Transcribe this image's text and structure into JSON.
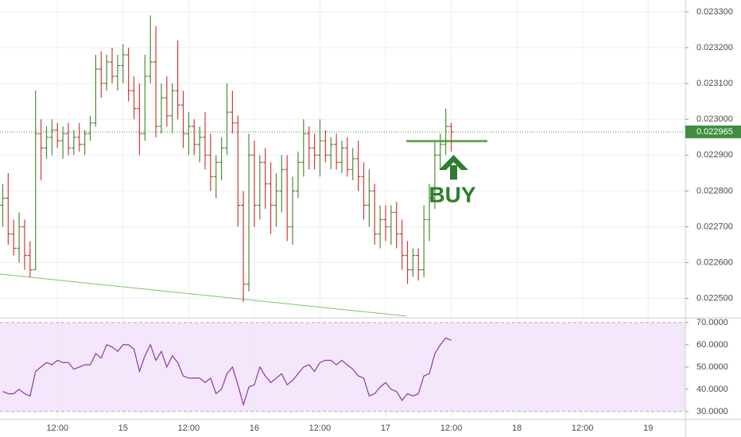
{
  "chart_data": {
    "type": "ohlc",
    "up_color": "#4e8b34",
    "down_color": "#d0393a",
    "grid": true,
    "xlim": [
      1.5,
      126.8
    ],
    "xticks": [
      {
        "value": 12,
        "label": "12:00"
      },
      {
        "value": 24,
        "label": "15"
      },
      {
        "value": 36,
        "label": "12:00"
      },
      {
        "value": 48,
        "label": "16"
      },
      {
        "value": 60,
        "label": "12:00"
      },
      {
        "value": 72,
        "label": "17"
      },
      {
        "value": 84,
        "label": "12:00"
      },
      {
        "value": 96,
        "label": "18"
      },
      {
        "value": 108,
        "label": "12:00"
      },
      {
        "value": 120,
        "label": "19"
      }
    ],
    "ylim": [
      0.022446,
      0.023333
    ],
    "yticks": [
      {
        "value": 0.0233,
        "label": "0.023300"
      },
      {
        "value": 0.0232,
        "label": "0.023200"
      },
      {
        "value": 0.0231,
        "label": "0.023100"
      },
      {
        "value": 0.023,
        "label": "0.023000"
      },
      {
        "value": 0.0229,
        "label": "0.022900"
      },
      {
        "value": 0.0228,
        "label": "0.022800"
      },
      {
        "value": 0.0227,
        "label": "0.022700"
      },
      {
        "value": 0.0226,
        "label": "0.022600"
      },
      {
        "value": 0.0225,
        "label": "0.022500"
      }
    ],
    "y2lim": [
      26.4,
      72.1
    ],
    "y2ticks": [
      {
        "value": 70,
        "label": "70.0000"
      },
      {
        "value": 60,
        "label": "60.0000"
      },
      {
        "value": 50,
        "label": "50.0000"
      },
      {
        "value": 40,
        "label": "40.0000"
      },
      {
        "value": 30,
        "label": "30.0000"
      }
    ],
    "current_price": 0.022965,
    "current_color": "#3f8f3f",
    "x": [
      2,
      3,
      4,
      5,
      6,
      7,
      8,
      9,
      10,
      11,
      12,
      13,
      14,
      15,
      16,
      17,
      18,
      19,
      20,
      21,
      22,
      23,
      24,
      25,
      26,
      27,
      28,
      29,
      30,
      31,
      32,
      33,
      34,
      35,
      36,
      37,
      38,
      39,
      40,
      41,
      42,
      43,
      44,
      45,
      46,
      47,
      48,
      49,
      50,
      51,
      52,
      53,
      54,
      55,
      56,
      57,
      58,
      59,
      60,
      61,
      62,
      63,
      64,
      65,
      66,
      67,
      68,
      69,
      70,
      71,
      72,
      73,
      74,
      75,
      76,
      77,
      78,
      79,
      80,
      81,
      82,
      83,
      84
    ],
    "ohlc": [
      [
        0.02276,
        0.02282,
        0.0227,
        0.02278
      ],
      [
        0.02278,
        0.02285,
        0.02265,
        0.02268
      ],
      [
        0.02268,
        0.02272,
        0.02262,
        0.02264
      ],
      [
        0.02264,
        0.02274,
        0.0226,
        0.0227
      ],
      [
        0.0227,
        0.02272,
        0.02258,
        0.02262
      ],
      [
        0.02262,
        0.02266,
        0.02256,
        0.02258
      ],
      [
        0.02258,
        0.02308,
        0.02258,
        0.02296
      ],
      [
        0.02296,
        0.023,
        0.02283,
        0.02292
      ],
      [
        0.02292,
        0.02298,
        0.02289,
        0.02295
      ],
      [
        0.02295,
        0.023,
        0.0229,
        0.02297
      ],
      [
        0.02297,
        0.02299,
        0.02292,
        0.02294
      ],
      [
        0.02294,
        0.02298,
        0.02289,
        0.02296
      ],
      [
        0.02296,
        0.02299,
        0.0229,
        0.02292
      ],
      [
        0.02292,
        0.02297,
        0.0229,
        0.02295
      ],
      [
        0.02295,
        0.02299,
        0.02291,
        0.02293
      ],
      [
        0.02293,
        0.02297,
        0.0229,
        0.02296
      ],
      [
        0.02296,
        0.02301,
        0.02294,
        0.02299
      ],
      [
        0.02299,
        0.02318,
        0.02298,
        0.02314
      ],
      [
        0.02314,
        0.02319,
        0.02306,
        0.0231
      ],
      [
        0.0231,
        0.02318,
        0.02308,
        0.02316
      ],
      [
        0.02316,
        0.0232,
        0.0231,
        0.02312
      ],
      [
        0.02312,
        0.02318,
        0.02308,
        0.02315
      ],
      [
        0.02315,
        0.02321,
        0.0231,
        0.02318
      ],
      [
        0.02318,
        0.0232,
        0.02305,
        0.02308
      ],
      [
        0.02308,
        0.02312,
        0.023,
        0.02303
      ],
      [
        0.02303,
        0.0231,
        0.0229,
        0.02296
      ],
      [
        0.02296,
        0.02318,
        0.02294,
        0.02312
      ],
      [
        0.02312,
        0.02329,
        0.0231,
        0.02316
      ],
      [
        0.02316,
        0.02326,
        0.02295,
        0.02298
      ],
      [
        0.02298,
        0.0231,
        0.02296,
        0.02306
      ],
      [
        0.02306,
        0.02312,
        0.02298,
        0.02301
      ],
      [
        0.02301,
        0.0231,
        0.02296,
        0.02308
      ],
      [
        0.02308,
        0.02322,
        0.023,
        0.02304
      ],
      [
        0.02304,
        0.02308,
        0.02292,
        0.02296
      ],
      [
        0.02296,
        0.02302,
        0.0229,
        0.02298
      ],
      [
        0.02298,
        0.023,
        0.0229,
        0.02293
      ],
      [
        0.02293,
        0.02298,
        0.02288,
        0.02295
      ],
      [
        0.02295,
        0.02302,
        0.02286,
        0.0229
      ],
      [
        0.0229,
        0.02296,
        0.0228,
        0.02284
      ],
      [
        0.02284,
        0.0229,
        0.02278,
        0.02288
      ],
      [
        0.02288,
        0.02295,
        0.02283,
        0.02292
      ],
      [
        0.02292,
        0.0231,
        0.0229,
        0.02302
      ],
      [
        0.02302,
        0.02308,
        0.02296,
        0.02299
      ],
      [
        0.02299,
        0.02301,
        0.0227,
        0.02276
      ],
      [
        0.02276,
        0.0228,
        0.02249,
        0.02254
      ],
      [
        0.02254,
        0.02296,
        0.02252,
        0.0229
      ],
      [
        0.0229,
        0.02294,
        0.0227,
        0.02276
      ],
      [
        0.02276,
        0.0229,
        0.02272,
        0.02288
      ],
      [
        0.02288,
        0.02292,
        0.02275,
        0.02282
      ],
      [
        0.02282,
        0.02288,
        0.02268,
        0.02276
      ],
      [
        0.02276,
        0.02285,
        0.0227,
        0.0228
      ],
      [
        0.0228,
        0.0229,
        0.02274,
        0.02286
      ],
      [
        0.02286,
        0.0229,
        0.02266,
        0.0227
      ],
      [
        0.0227,
        0.02284,
        0.02265,
        0.0228
      ],
      [
        0.0228,
        0.02291,
        0.02278,
        0.02288
      ],
      [
        0.02288,
        0.023,
        0.02284,
        0.02296
      ],
      [
        0.02296,
        0.02298,
        0.02286,
        0.02292
      ],
      [
        0.02292,
        0.02296,
        0.02286,
        0.0229
      ],
      [
        0.0229,
        0.023,
        0.02284,
        0.02294
      ],
      [
        0.02294,
        0.02297,
        0.02288,
        0.0229
      ],
      [
        0.0229,
        0.02295,
        0.02286,
        0.02293
      ],
      [
        0.02293,
        0.02296,
        0.02286,
        0.02288
      ],
      [
        0.02288,
        0.02294,
        0.02285,
        0.02292
      ],
      [
        0.02292,
        0.02295,
        0.02284,
        0.02286
      ],
      [
        0.02286,
        0.02292,
        0.02283,
        0.02289
      ],
      [
        0.02289,
        0.02294,
        0.0228,
        0.02284
      ],
      [
        0.02284,
        0.02288,
        0.02272,
        0.02276
      ],
      [
        0.02276,
        0.02286,
        0.0227,
        0.0228
      ],
      [
        0.0228,
        0.02282,
        0.02265,
        0.02268
      ],
      [
        0.02268,
        0.02276,
        0.02264,
        0.02272
      ],
      [
        0.02272,
        0.02276,
        0.02266,
        0.0227
      ],
      [
        0.0227,
        0.02276,
        0.02265,
        0.02274
      ],
      [
        0.02274,
        0.02277,
        0.02264,
        0.02268
      ],
      [
        0.02268,
        0.02272,
        0.02258,
        0.02262
      ],
      [
        0.02262,
        0.02266,
        0.02254,
        0.02258
      ],
      [
        0.02258,
        0.02264,
        0.02256,
        0.02262
      ],
      [
        0.02262,
        0.02264,
        0.02255,
        0.02258
      ],
      [
        0.02258,
        0.02276,
        0.02256,
        0.02272
      ],
      [
        0.02272,
        0.02282,
        0.02266,
        0.02278
      ],
      [
        0.02278,
        0.02294,
        0.02275,
        0.0229
      ],
      [
        0.0229,
        0.02296,
        0.02286,
        0.02293
      ],
      [
        0.02293,
        0.02303,
        0.0229,
        0.02298
      ],
      [
        0.02298,
        0.02299,
        0.02291,
        0.022965
      ]
    ],
    "series": [
      {
        "color": "#8e3b9e",
        "axis": "y2",
        "values": [
          39,
          38,
          38,
          40,
          38,
          37,
          48,
          50,
          52,
          51,
          53,
          52,
          52,
          49,
          50,
          51,
          51,
          56,
          54,
          60,
          59,
          57,
          60,
          60,
          58,
          48,
          55,
          60,
          53,
          57,
          50,
          55,
          52,
          46,
          45,
          45,
          45,
          43,
          45,
          38,
          40,
          47,
          50,
          42,
          33,
          41,
          42,
          50,
          46,
          43,
          45,
          47,
          42,
          44,
          47,
          50,
          51,
          48,
          52,
          53,
          53,
          51,
          53,
          51,
          49,
          46,
          45,
          37,
          38,
          41,
          43,
          40,
          39,
          35,
          38,
          37,
          38,
          46,
          47,
          56,
          60,
          63,
          62
        ]
      }
    ],
    "lines": [
      {
        "color": "#7fc46a",
        "x": [
          1.5,
          75.7
        ],
        "y": [
          0.022568,
          0.022451
        ]
      },
      {
        "color": "#6aaa4f",
        "x": [
          75.8,
          90.6
        ],
        "y": [
          0.022939,
          0.022939
        ]
      }
    ],
    "annotations": [
      "BUY"
    ]
  }
}
